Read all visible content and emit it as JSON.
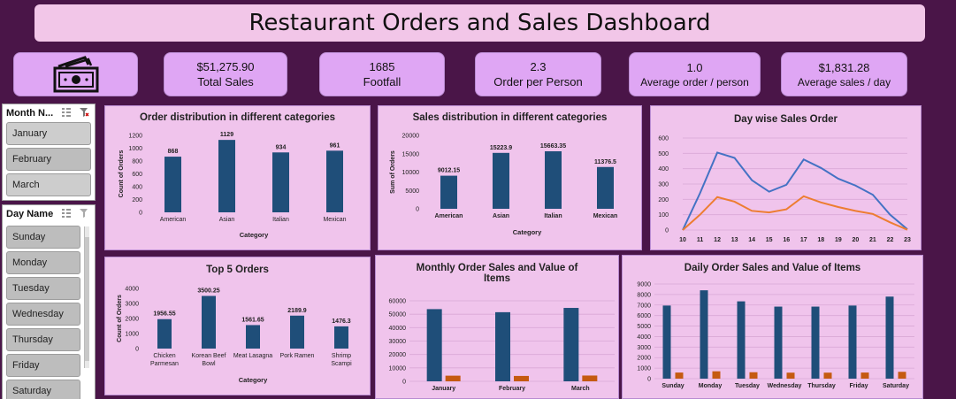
{
  "title": "Restaurant Orders and Sales Dashboard",
  "kpis": [
    {
      "value": "$51,275.90",
      "label": "Total Sales"
    },
    {
      "value": "1685",
      "label": "Footfall"
    },
    {
      "value": "2.3",
      "label": "Order per Person"
    },
    {
      "value": "1.0",
      "label": "Average order / person"
    },
    {
      "value": "$1,831.28",
      "label": "Average sales / day"
    }
  ],
  "icons": {
    "kpi": "money-icon",
    "filter": "multi-select-icon",
    "clear": "clear-filter-icon"
  },
  "slicers": {
    "month": {
      "title": "Month N...",
      "items": [
        "January",
        "February",
        "March"
      ]
    },
    "day": {
      "title": "Day Name",
      "items": [
        "Sunday",
        "Monday",
        "Tuesday",
        "Wednesday",
        "Thursday",
        "Friday",
        "Saturday"
      ]
    }
  },
  "colors": {
    "background": "#4a1548",
    "panel": "#f0c4ec",
    "bar": "#1f4e79",
    "orange": "#c55a11",
    "line_blue": "#4472c4",
    "line_orange": "#ed7d31"
  },
  "chart_data": [
    {
      "id": "order-dist",
      "type": "bar",
      "title": "Order distribution in different categories",
      "xlabel": "Category",
      "ylabel": "Count of Orders",
      "categories": [
        "American",
        "Asian",
        "Italian",
        "Mexican"
      ],
      "values": [
        868,
        1129,
        934,
        961
      ],
      "data_labels": [
        "868",
        "1129",
        "934",
        "961"
      ],
      "ylim": [
        0,
        1200
      ],
      "yticks": [
        0,
        200,
        400,
        600,
        800,
        1000,
        1200
      ]
    },
    {
      "id": "sales-dist",
      "type": "bar",
      "title": "Sales distribution in different categories",
      "xlabel": "Category",
      "ylabel": "Sum of Orders",
      "categories": [
        "American",
        "Asian",
        "Italian",
        "Mexican"
      ],
      "values": [
        9012.15,
        15223.9,
        15663.35,
        11376.5
      ],
      "data_labels": [
        "9012.15",
        "15223.9",
        "15663.35",
        "11376.5"
      ],
      "ylim": [
        0,
        20000
      ],
      "yticks": [
        0,
        5000,
        10000,
        15000,
        20000
      ]
    },
    {
      "id": "day-wise",
      "type": "line",
      "title": "Day wise Sales Order",
      "x": [
        10,
        11,
        12,
        13,
        14,
        15,
        16,
        17,
        18,
        19,
        20,
        21,
        22,
        23
      ],
      "series": [
        {
          "values": [
            0,
            240,
            505,
            470,
            325,
            250,
            295,
            460,
            405,
            335,
            290,
            230,
            100,
            5
          ]
        },
        {
          "values": [
            0,
            100,
            215,
            185,
            125,
            115,
            135,
            220,
            180,
            150,
            125,
            105,
            50,
            2
          ]
        }
      ],
      "ylim": [
        0,
        600
      ],
      "yticks": [
        0,
        100,
        200,
        300,
        400,
        500,
        600
      ]
    },
    {
      "id": "top5",
      "type": "bar",
      "title": "Top 5 Orders",
      "xlabel": "Category",
      "ylabel": "Count of Orders",
      "categories": [
        [
          "Chicken",
          "Parmesan"
        ],
        [
          "Korean Beef",
          "Bowl"
        ],
        [
          "Meat Lasagna"
        ],
        [
          "Pork Ramen"
        ],
        [
          "Shrimp",
          "Scampi"
        ]
      ],
      "values": [
        1956.55,
        3500.25,
        1561.65,
        2189.9,
        1476.3
      ],
      "data_labels": [
        "1956.55",
        "3500.25",
        "1561.65",
        "2189.9",
        "1476.3"
      ],
      "ylim": [
        0,
        4000
      ],
      "yticks": [
        0,
        1000,
        2000,
        3000,
        4000
      ]
    },
    {
      "id": "monthly",
      "type": "bar",
      "title_lines": [
        "Monthly Order Sales and Value of",
        "Items"
      ],
      "categories": [
        "January",
        "February",
        "March"
      ],
      "series": [
        {
          "values": [
            53800,
            51500,
            54700
          ]
        },
        {
          "values": [
            4200,
            4000,
            4300
          ]
        }
      ],
      "ylim": [
        0,
        60000
      ],
      "yticks": [
        0,
        10000,
        20000,
        30000,
        40000,
        50000,
        60000
      ]
    },
    {
      "id": "daily",
      "type": "bar",
      "title": "Daily Order Sales and Value of Items",
      "categories": [
        "Sunday",
        "Monday",
        "Tuesday",
        "Wednesday",
        "Thursday",
        "Friday",
        "Saturday"
      ],
      "series": [
        {
          "values": [
            6950,
            8400,
            7350,
            6850,
            6850,
            6950,
            7800
          ]
        },
        {
          "values": [
            580,
            700,
            610,
            570,
            570,
            580,
            650
          ]
        }
      ],
      "ylim": [
        0,
        9000
      ],
      "yticks": [
        0,
        1000,
        2000,
        3000,
        4000,
        5000,
        6000,
        7000,
        8000,
        9000
      ]
    }
  ]
}
